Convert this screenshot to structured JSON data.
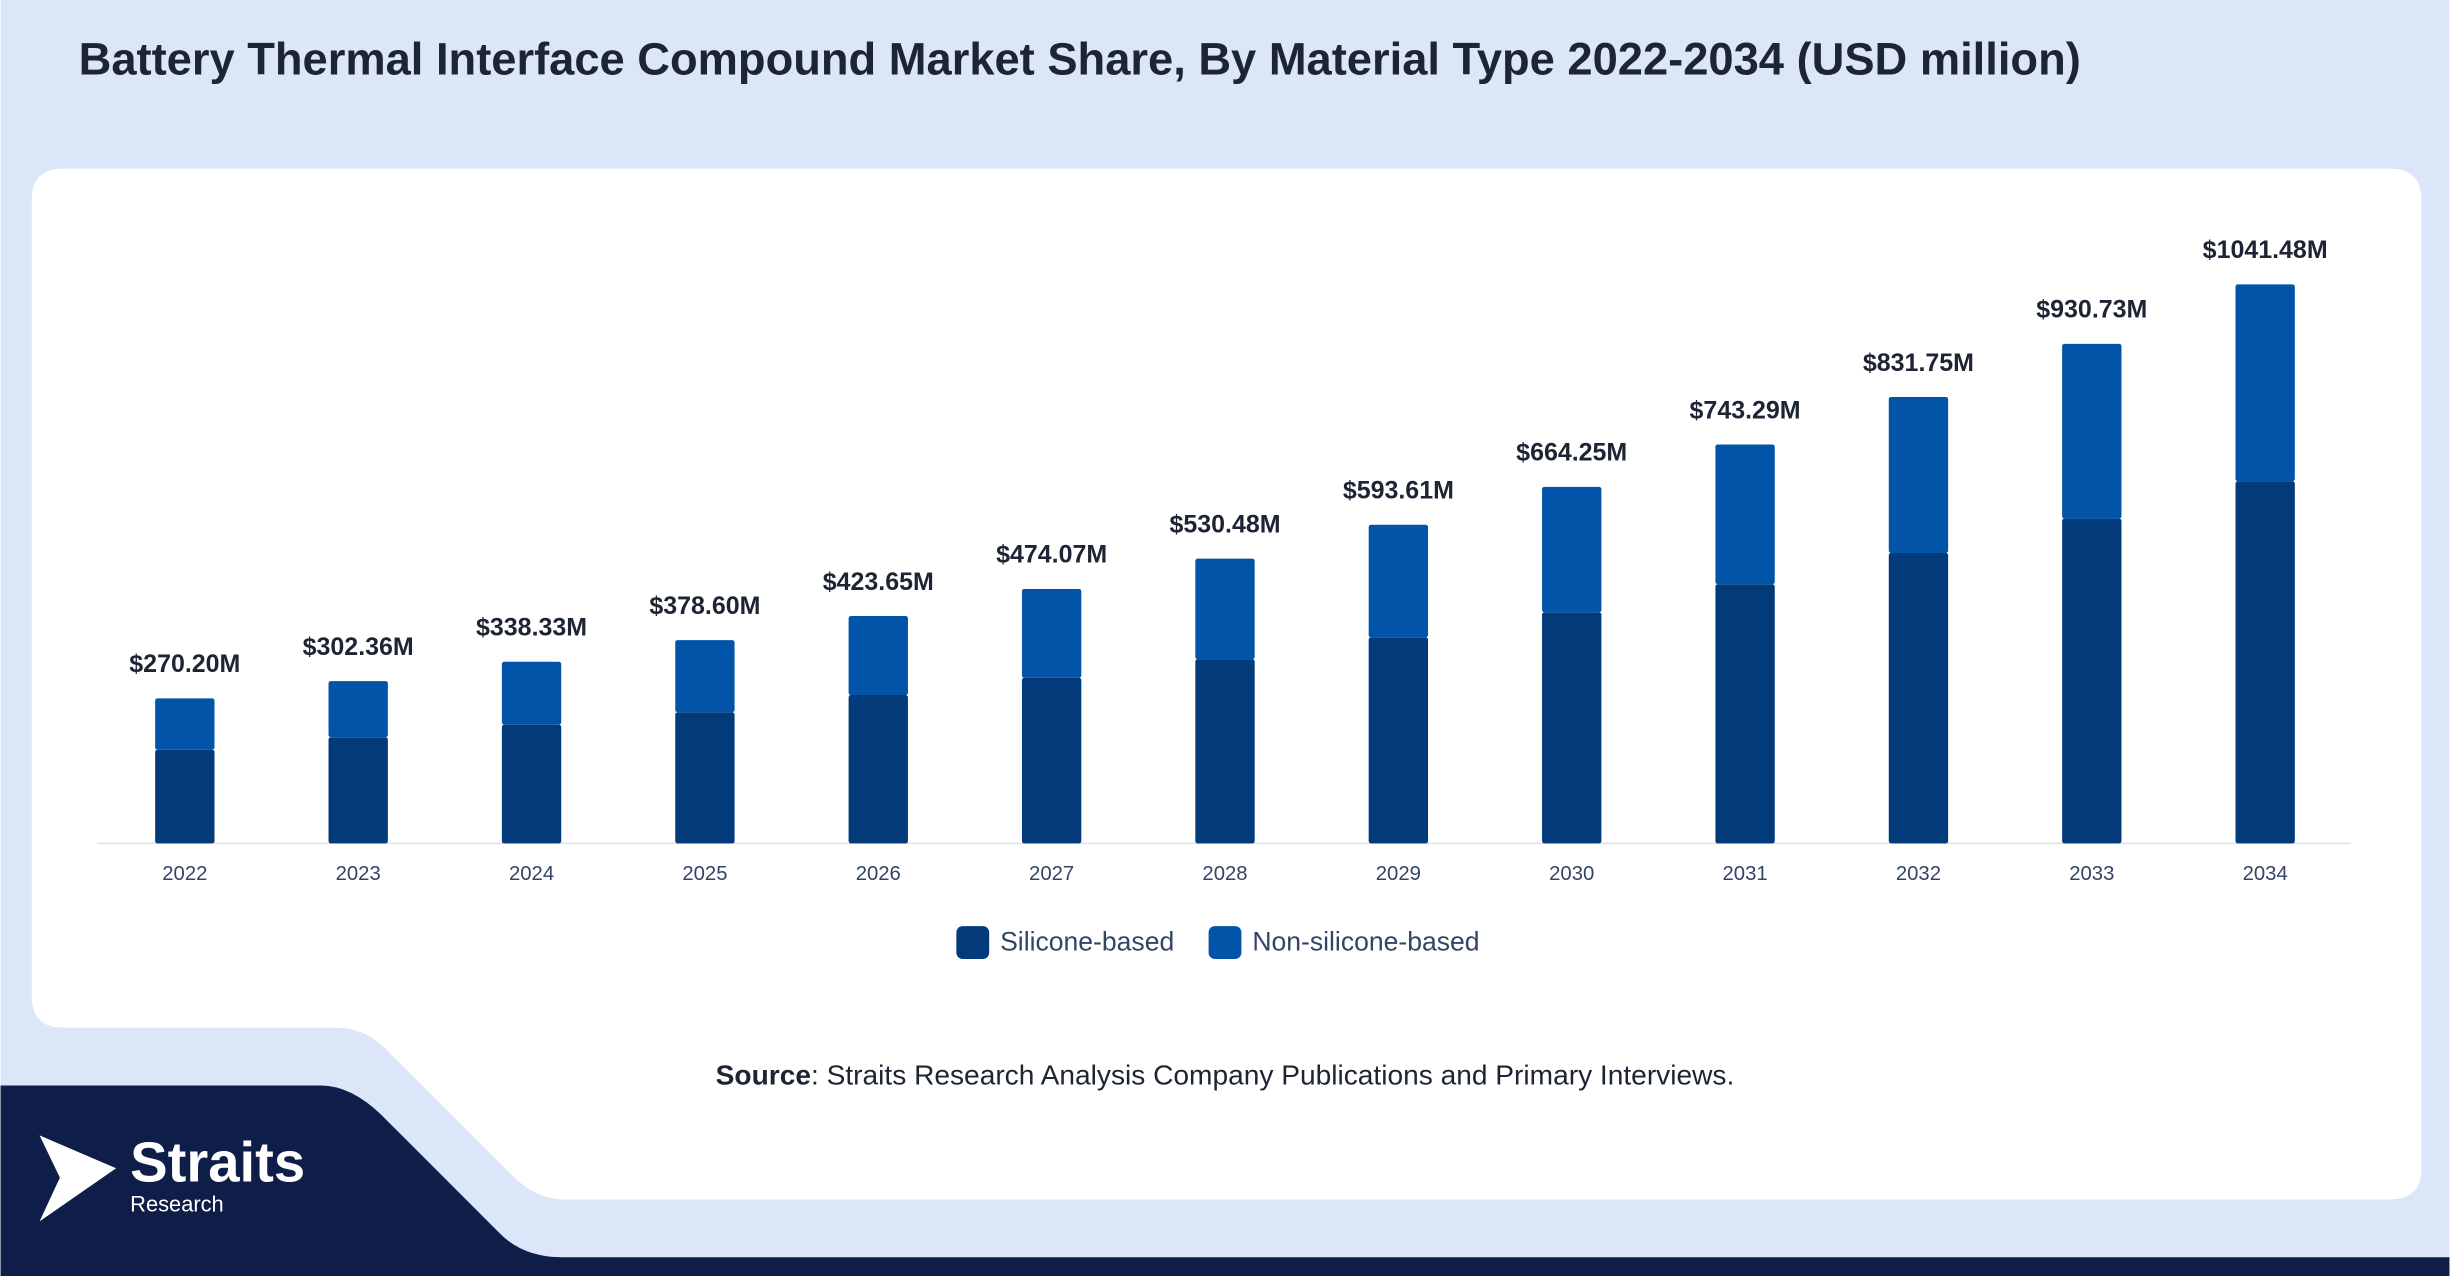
{
  "chart_data": {
    "type": "stacked_bar",
    "title": "Battery Thermal Interface Compound Market Share, By Material Type 2022-2034 (USD million)",
    "categories": [
      "2022",
      "2023",
      "2024",
      "2025",
      "2026",
      "2027",
      "2028",
      "2029",
      "2030",
      "2031",
      "2032",
      "2033",
      "2034"
    ],
    "series": [
      {
        "name": "Silicone-based",
        "color": "#033b7a",
        "values": [
          174.5,
          197.8,
          221.1,
          244.4,
          276.4,
          308.4,
          343.3,
          384.0,
          430.6,
          482.9,
          541.1,
          605.1,
          674.9
        ]
      },
      {
        "name": "Non-silicone-based",
        "color": "#0254a8",
        "values": [
          95.7,
          104.56,
          117.23,
          134.2,
          147.25,
          165.67,
          187.18,
          209.61,
          233.65,
          260.39,
          290.65,
          325.63,
          366.58
        ]
      }
    ],
    "totals": {
      "values": [
        270.2,
        302.36,
        338.33,
        378.6,
        423.65,
        474.07,
        530.48,
        593.61,
        664.25,
        743.29,
        831.75,
        930.73,
        1041.48
      ],
      "value_labels": [
        "$270.20M",
        "$302.36M",
        "$338.33M",
        "$378.60M",
        "$423.65M",
        "$474.07M",
        "$530.48M",
        "$593.61M",
        "$664.25M",
        "$743.29M",
        "$831.75M",
        "$930.73M",
        "$1041.48M"
      ]
    },
    "ylim": [
      0,
      1100
    ],
    "grid": false,
    "legend": "bottom"
  },
  "source": {
    "label": "Source",
    "text": ": Straits Research Analysis Company Publications and Primary Interviews."
  },
  "logo": {
    "name": "Straits",
    "sub": "Research"
  }
}
